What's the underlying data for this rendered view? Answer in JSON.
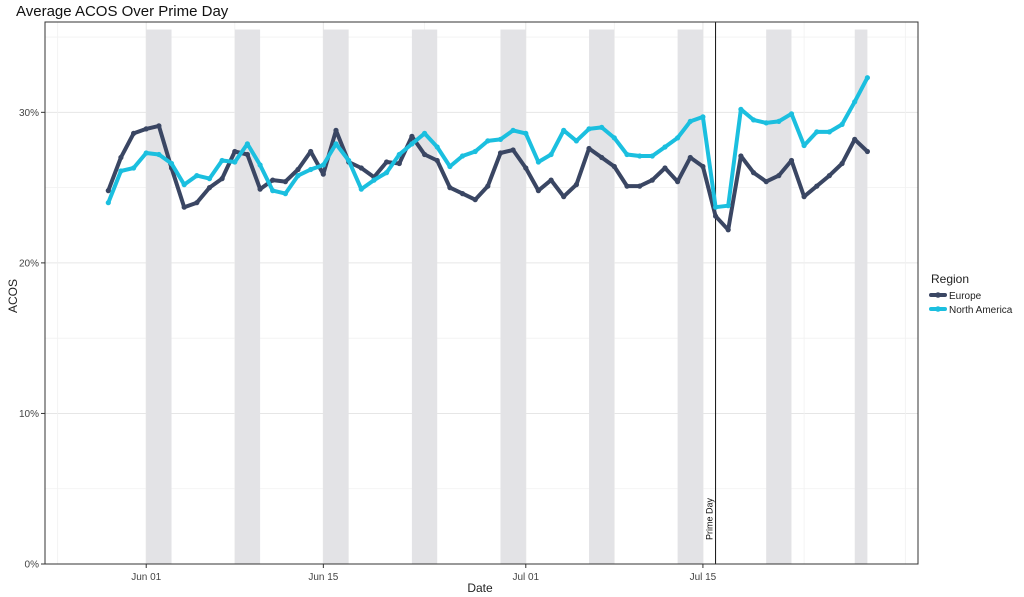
{
  "chart_data": {
    "type": "line",
    "title": "Average ACOS Over Prime Day",
    "xlabel": "Date",
    "ylabel": "ACOS",
    "x_ticks": [
      "Jun 01",
      "Jun 15",
      "Jul 01",
      "Jul 15"
    ],
    "y_ticks": [
      "0%",
      "10%",
      "20%",
      "30%"
    ],
    "ylim": [
      0,
      0.36
    ],
    "xlim": [
      "2019-05-24",
      "2019-08-01"
    ],
    "grid": true,
    "legend_title": "Region",
    "legend_position": "right",
    "weekend_bands": [
      [
        "2019-06-01",
        "2019-06-03"
      ],
      [
        "2019-06-08",
        "2019-06-10"
      ],
      [
        "2019-06-15",
        "2019-06-17"
      ],
      [
        "2019-06-22",
        "2019-06-24"
      ],
      [
        "2019-06-29",
        "2019-07-01"
      ],
      [
        "2019-07-06",
        "2019-07-08"
      ],
      [
        "2019-07-13",
        "2019-07-15"
      ],
      [
        "2019-07-20",
        "2019-07-22"
      ],
      [
        "2019-07-27",
        "2019-07-28"
      ]
    ],
    "annotation": {
      "date": "2019-07-16",
      "label": "Prime Day"
    },
    "dates": [
      "2019-05-29",
      "2019-05-30",
      "2019-05-31",
      "2019-06-01",
      "2019-06-02",
      "2019-06-03",
      "2019-06-04",
      "2019-06-05",
      "2019-06-06",
      "2019-06-07",
      "2019-06-08",
      "2019-06-09",
      "2019-06-10",
      "2019-06-11",
      "2019-06-12",
      "2019-06-13",
      "2019-06-14",
      "2019-06-15",
      "2019-06-16",
      "2019-06-17",
      "2019-06-18",
      "2019-06-19",
      "2019-06-20",
      "2019-06-21",
      "2019-06-22",
      "2019-06-23",
      "2019-06-24",
      "2019-06-25",
      "2019-06-26",
      "2019-06-27",
      "2019-06-28",
      "2019-06-29",
      "2019-06-30",
      "2019-07-01",
      "2019-07-02",
      "2019-07-03",
      "2019-07-04",
      "2019-07-05",
      "2019-07-06",
      "2019-07-07",
      "2019-07-08",
      "2019-07-09",
      "2019-07-10",
      "2019-07-11",
      "2019-07-12",
      "2019-07-13",
      "2019-07-14",
      "2019-07-15",
      "2019-07-16",
      "2019-07-17",
      "2019-07-18",
      "2019-07-19",
      "2019-07-20",
      "2019-07-21",
      "2019-07-22",
      "2019-07-23",
      "2019-07-24",
      "2019-07-25",
      "2019-07-26",
      "2019-07-27",
      "2019-07-28"
    ],
    "series": [
      {
        "name": "Europe",
        "color": "#3a4663",
        "values": [
          0.248,
          0.27,
          0.286,
          0.289,
          0.291,
          0.263,
          0.237,
          0.24,
          0.25,
          0.256,
          0.274,
          0.272,
          0.249,
          0.255,
          0.254,
          0.262,
          0.274,
          0.259,
          0.288,
          0.267,
          0.263,
          0.257,
          0.267,
          0.266,
          0.284,
          0.272,
          0.268,
          0.25,
          0.246,
          0.242,
          0.251,
          0.273,
          0.275,
          0.263,
          0.248,
          0.255,
          0.244,
          0.252,
          0.276,
          0.27,
          0.264,
          0.251,
          0.251,
          0.255,
          0.263,
          0.254,
          0.27,
          0.264,
          0.231,
          0.222,
          0.271,
          0.26,
          0.254,
          0.258,
          0.268,
          0.244,
          0.251,
          0.258,
          0.266,
          0.282,
          0.274
        ]
      },
      {
        "name": "North America",
        "color": "#1bbfdf",
        "values": [
          0.24,
          0.261,
          0.263,
          0.273,
          0.272,
          0.266,
          0.252,
          0.258,
          0.256,
          0.268,
          0.267,
          0.279,
          0.265,
          0.248,
          0.246,
          0.258,
          0.262,
          0.265,
          0.279,
          0.268,
          0.249,
          0.255,
          0.26,
          0.272,
          0.279,
          0.286,
          0.277,
          0.264,
          0.271,
          0.274,
          0.281,
          0.282,
          0.288,
          0.286,
          0.267,
          0.272,
          0.288,
          0.281,
          0.289,
          0.29,
          0.283,
          0.272,
          0.271,
          0.271,
          0.277,
          0.283,
          0.294,
          0.297,
          0.237,
          0.238,
          0.302,
          0.295,
          0.293,
          0.294,
          0.299,
          0.278,
          0.287,
          0.287,
          0.292,
          0.307,
          0.323
        ]
      }
    ]
  }
}
